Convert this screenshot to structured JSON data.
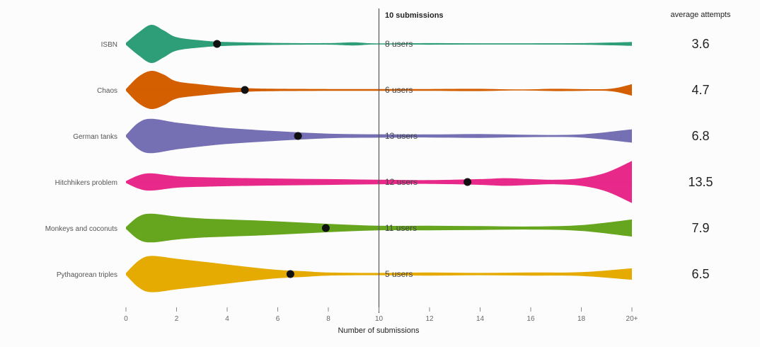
{
  "chart_data": {
    "type": "violin",
    "xlabel": "Number of submissions",
    "x_ticks": [
      "0",
      "2",
      "4",
      "6",
      "8",
      "10",
      "12",
      "14",
      "16",
      "18",
      "20+"
    ],
    "xlim": [
      0,
      20
    ],
    "reference_line": {
      "x": 10,
      "label": "10 submissions"
    },
    "avg_header": "average attempts",
    "colors": [
      "#2e9e78",
      "#d35f00",
      "#7570b3",
      "#e7298a",
      "#66a61e",
      "#e6ab02"
    ],
    "series": [
      {
        "name": "ISBN",
        "mean": 3.6,
        "avg_label": "3.6",
        "users_label": "8 users",
        "density": [
          [
            0,
            0.05
          ],
          [
            0.5,
            0.6
          ],
          [
            1,
            1.0
          ],
          [
            1.5,
            0.7
          ],
          [
            2,
            0.35
          ],
          [
            3,
            0.18
          ],
          [
            4,
            0.1
          ],
          [
            6,
            0.05
          ],
          [
            8,
            0.04
          ],
          [
            9,
            0.08
          ],
          [
            10,
            0.02
          ],
          [
            12,
            0.04
          ],
          [
            14,
            0.03
          ],
          [
            16,
            0.03
          ],
          [
            18,
            0.04
          ],
          [
            20,
            0.1
          ]
        ]
      },
      {
        "name": "Chaos",
        "mean": 4.7,
        "avg_label": "4.7",
        "users_label": "6 users",
        "density": [
          [
            0,
            0.05
          ],
          [
            0.5,
            0.7
          ],
          [
            1,
            1.0
          ],
          [
            1.5,
            0.8
          ],
          [
            2,
            0.45
          ],
          [
            3,
            0.28
          ],
          [
            4,
            0.15
          ],
          [
            5,
            0.08
          ],
          [
            6,
            0.06
          ],
          [
            8,
            0.05
          ],
          [
            10,
            0.05
          ],
          [
            12,
            0.05
          ],
          [
            14,
            0.06
          ],
          [
            15.5,
            0.02
          ],
          [
            17,
            0.06
          ],
          [
            19,
            0.05
          ],
          [
            20,
            0.3
          ]
        ]
      },
      {
        "name": "German tanks",
        "mean": 6.8,
        "avg_label": "6.8",
        "users_label": "13 users",
        "density": [
          [
            0,
            0.05
          ],
          [
            0.5,
            0.7
          ],
          [
            1,
            0.9
          ],
          [
            2,
            0.7
          ],
          [
            3,
            0.55
          ],
          [
            4,
            0.42
          ],
          [
            6,
            0.25
          ],
          [
            8,
            0.12
          ],
          [
            10,
            0.09
          ],
          [
            12,
            0.08
          ],
          [
            14,
            0.1
          ],
          [
            16,
            0.06
          ],
          [
            18,
            0.08
          ],
          [
            20,
            0.35
          ]
        ]
      },
      {
        "name": "Hitchhikers problem",
        "mean": 13.5,
        "avg_label": "13.5",
        "users_label": "12 users",
        "density": [
          [
            0,
            0.05
          ],
          [
            0.5,
            0.35
          ],
          [
            1,
            0.45
          ],
          [
            2,
            0.3
          ],
          [
            3,
            0.25
          ],
          [
            4,
            0.22
          ],
          [
            6,
            0.18
          ],
          [
            8,
            0.15
          ],
          [
            10,
            0.12
          ],
          [
            12,
            0.1
          ],
          [
            14,
            0.15
          ],
          [
            15,
            0.2
          ],
          [
            16,
            0.15
          ],
          [
            17,
            0.12
          ],
          [
            18,
            0.2
          ],
          [
            19,
            0.5
          ],
          [
            20,
            1.1
          ]
        ]
      },
      {
        "name": "Monkeys and coconuts",
        "mean": 7.9,
        "avg_label": "7.9",
        "users_label": "11 users",
        "density": [
          [
            0,
            0.05
          ],
          [
            0.5,
            0.6
          ],
          [
            1,
            0.75
          ],
          [
            2,
            0.6
          ],
          [
            3,
            0.5
          ],
          [
            4,
            0.45
          ],
          [
            6,
            0.35
          ],
          [
            8,
            0.22
          ],
          [
            10,
            0.12
          ],
          [
            12,
            0.12
          ],
          [
            14,
            0.1
          ],
          [
            16,
            0.08
          ],
          [
            18,
            0.15
          ],
          [
            20,
            0.45
          ]
        ]
      },
      {
        "name": "Pythagorean triples",
        "mean": 6.5,
        "avg_label": "6.5",
        "users_label": "5 users",
        "density": [
          [
            0,
            0.05
          ],
          [
            0.5,
            0.7
          ],
          [
            1,
            0.95
          ],
          [
            2,
            0.8
          ],
          [
            3,
            0.65
          ],
          [
            4,
            0.5
          ],
          [
            5,
            0.35
          ],
          [
            6,
            0.22
          ],
          [
            7,
            0.15
          ],
          [
            8,
            0.08
          ],
          [
            10,
            0.06
          ],
          [
            12,
            0.08
          ],
          [
            14,
            0.06
          ],
          [
            16,
            0.08
          ],
          [
            18,
            0.1
          ],
          [
            20,
            0.3
          ]
        ]
      }
    ]
  }
}
